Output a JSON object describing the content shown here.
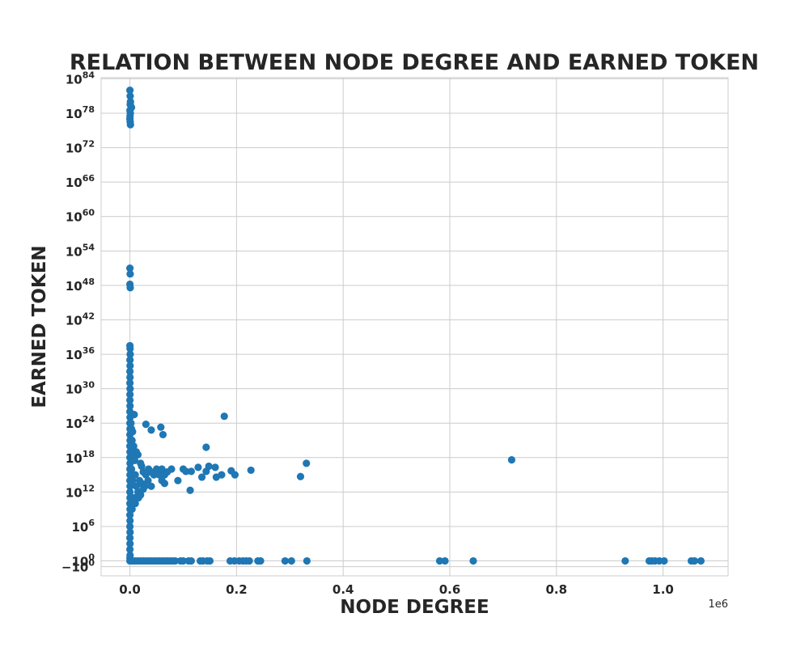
{
  "chart_data": {
    "type": "scatter",
    "title": "RELATION BETWEEN NODE DEGREE AND EARNED TOKEN",
    "xlabel": "NODE DEGREE",
    "ylabel": "EARNED TOKEN",
    "x_offset_text": "1e6",
    "xlim": [
      -54000,
      1122000
    ],
    "y_scale": "symlog",
    "y_linthresh": 1,
    "ylim_exp": [
      -2.6,
      84.2
    ],
    "x_ticks": [
      {
        "value": 0,
        "label": "0.0"
      },
      {
        "value": 200000,
        "label": "0.2"
      },
      {
        "value": 400000,
        "label": "0.4"
      },
      {
        "value": 600000,
        "label": "0.6"
      },
      {
        "value": 800000,
        "label": "0.8"
      },
      {
        "value": 1000000,
        "label": "1.0"
      }
    ],
    "y_ticks": [
      {
        "exp": -1,
        "base": "−10",
        "sup": "0"
      },
      {
        "exp": 0,
        "base": "10",
        "sup": "0"
      },
      {
        "exp": 6,
        "base": "10",
        "sup": "6"
      },
      {
        "exp": 12,
        "base": "10",
        "sup": "12"
      },
      {
        "exp": 18,
        "base": "10",
        "sup": "18"
      },
      {
        "exp": 24,
        "base": "10",
        "sup": "24"
      },
      {
        "exp": 30,
        "base": "10",
        "sup": "30"
      },
      {
        "exp": 36,
        "base": "10",
        "sup": "36"
      },
      {
        "exp": 42,
        "base": "10",
        "sup": "42"
      },
      {
        "exp": 48,
        "base": "10",
        "sup": "48"
      },
      {
        "exp": 54,
        "base": "10",
        "sup": "54"
      },
      {
        "exp": 60,
        "base": "10",
        "sup": "60"
      },
      {
        "exp": 66,
        "base": "10",
        "sup": "66"
      },
      {
        "exp": 72,
        "base": "10",
        "sup": "72"
      },
      {
        "exp": 78,
        "base": "10",
        "sup": "78"
      },
      {
        "exp": 84,
        "base": "10",
        "sup": "84"
      }
    ],
    "point_color": "#1f77b4",
    "grid": true,
    "points": [
      [
        0,
        82
      ],
      [
        500,
        81
      ],
      [
        1000,
        80
      ],
      [
        600,
        79.5
      ],
      [
        3000,
        79
      ],
      [
        0,
        78.5
      ],
      [
        800,
        78
      ],
      [
        200,
        77.5
      ],
      [
        0,
        77
      ],
      [
        500,
        76.5
      ],
      [
        1000,
        76
      ],
      [
        0,
        51
      ],
      [
        500,
        50
      ],
      [
        0,
        48.2
      ],
      [
        600,
        47.6
      ],
      [
        0,
        37.5
      ],
      [
        300,
        37
      ],
      [
        500,
        36
      ],
      [
        100,
        35
      ],
      [
        300,
        34
      ],
      [
        0,
        33
      ],
      [
        200,
        32
      ],
      [
        0,
        31
      ],
      [
        300,
        30
      ],
      [
        100,
        29
      ],
      [
        0,
        28
      ],
      [
        200,
        27
      ],
      [
        0,
        26
      ],
      [
        300,
        25
      ],
      [
        0,
        24
      ],
      [
        200,
        23
      ],
      [
        0,
        22
      ],
      [
        300,
        21
      ],
      [
        0,
        20
      ],
      [
        200,
        19
      ],
      [
        0,
        18
      ],
      [
        300,
        17
      ],
      [
        0,
        16
      ],
      [
        200,
        15
      ],
      [
        0,
        14
      ],
      [
        300,
        13
      ],
      [
        0,
        12
      ],
      [
        200,
        11
      ],
      [
        0,
        10
      ],
      [
        300,
        9
      ],
      [
        0,
        8
      ],
      [
        200,
        7
      ],
      [
        0,
        6
      ],
      [
        300,
        5
      ],
      [
        0,
        4
      ],
      [
        200,
        3
      ],
      [
        0,
        2
      ],
      [
        300,
        1
      ],
      [
        0,
        0.5
      ],
      [
        2000,
        24
      ],
      [
        3000,
        23
      ],
      [
        5000,
        22.5
      ],
      [
        4000,
        21
      ],
      [
        7000,
        20
      ],
      [
        8000,
        19
      ],
      [
        6000,
        18.5
      ],
      [
        9000,
        17.5
      ],
      [
        12000,
        19
      ],
      [
        15000,
        18.5
      ],
      [
        20000,
        17
      ],
      [
        3000,
        16
      ],
      [
        10000,
        15
      ],
      [
        25000,
        15.5
      ],
      [
        30000,
        15
      ],
      [
        35000,
        16
      ],
      [
        40000,
        15.5
      ],
      [
        45000,
        15
      ],
      [
        50000,
        16
      ],
      [
        55000,
        15
      ],
      [
        60000,
        16
      ],
      [
        65000,
        15
      ],
      [
        70000,
        15.5
      ],
      [
        5000,
        14
      ],
      [
        12000,
        13
      ],
      [
        18000,
        14
      ],
      [
        22000,
        13.5
      ],
      [
        28000,
        13
      ],
      [
        34000,
        14
      ],
      [
        40000,
        13
      ],
      [
        60000,
        14
      ],
      [
        65000,
        13.5
      ],
      [
        15000,
        12
      ],
      [
        20000,
        11.5
      ],
      [
        25000,
        12.5
      ],
      [
        8000,
        11
      ],
      [
        10000,
        10
      ],
      [
        16000,
        11
      ],
      [
        4000,
        9
      ],
      [
        6000,
        10
      ],
      [
        8000,
        25.5
      ],
      [
        30000,
        23.8
      ],
      [
        40000,
        22.8
      ],
      [
        58000,
        23.3
      ],
      [
        62000,
        22
      ],
      [
        22000,
        16.5
      ],
      [
        143000,
        19.8
      ],
      [
        177000,
        25.2
      ],
      [
        78000,
        16
      ],
      [
        90000,
        14
      ],
      [
        100000,
        16
      ],
      [
        105000,
        15.6
      ],
      [
        115000,
        15.6
      ],
      [
        128000,
        16.3
      ],
      [
        135000,
        14.6
      ],
      [
        143000,
        15.6
      ],
      [
        148000,
        16.5
      ],
      [
        160000,
        16.3
      ],
      [
        162000,
        14.6
      ],
      [
        172000,
        15
      ],
      [
        190000,
        15.7
      ],
      [
        197000,
        15
      ],
      [
        227000,
        15.8
      ],
      [
        113000,
        12.3
      ],
      [
        320000,
        14.7
      ],
      [
        331000,
        17
      ],
      [
        716000,
        17.6
      ],
      [
        0,
        0
      ],
      [
        5000,
        0
      ],
      [
        10000,
        0
      ],
      [
        15000,
        0
      ],
      [
        20000,
        0
      ],
      [
        25000,
        0
      ],
      [
        30000,
        0
      ],
      [
        35000,
        0
      ],
      [
        40000,
        0
      ],
      [
        45000,
        0
      ],
      [
        50000,
        0
      ],
      [
        55000,
        0
      ],
      [
        60000,
        0
      ],
      [
        65000,
        0
      ],
      [
        70000,
        0
      ],
      [
        75000,
        0
      ],
      [
        80000,
        0
      ],
      [
        85000,
        0
      ],
      [
        95000,
        0
      ],
      [
        100000,
        0
      ],
      [
        110000,
        0
      ],
      [
        115000,
        0
      ],
      [
        132000,
        0
      ],
      [
        137000,
        0
      ],
      [
        145000,
        0
      ],
      [
        150000,
        0
      ],
      [
        188000,
        0
      ],
      [
        196000,
        0
      ],
      [
        205000,
        0
      ],
      [
        212000,
        0
      ],
      [
        218000,
        0
      ],
      [
        224000,
        0
      ],
      [
        240000,
        0
      ],
      [
        245000,
        0
      ],
      [
        291000,
        0
      ],
      [
        303000,
        0
      ],
      [
        332000,
        0
      ],
      [
        581000,
        0
      ],
      [
        591000,
        0
      ],
      [
        644000,
        0
      ],
      [
        929000,
        0
      ],
      [
        974000,
        0
      ],
      [
        979000,
        0
      ],
      [
        985000,
        0
      ],
      [
        993000,
        0
      ],
      [
        1002000,
        0
      ],
      [
        1053000,
        0
      ],
      [
        1059000,
        0
      ],
      [
        1071000,
        0
      ]
    ]
  }
}
